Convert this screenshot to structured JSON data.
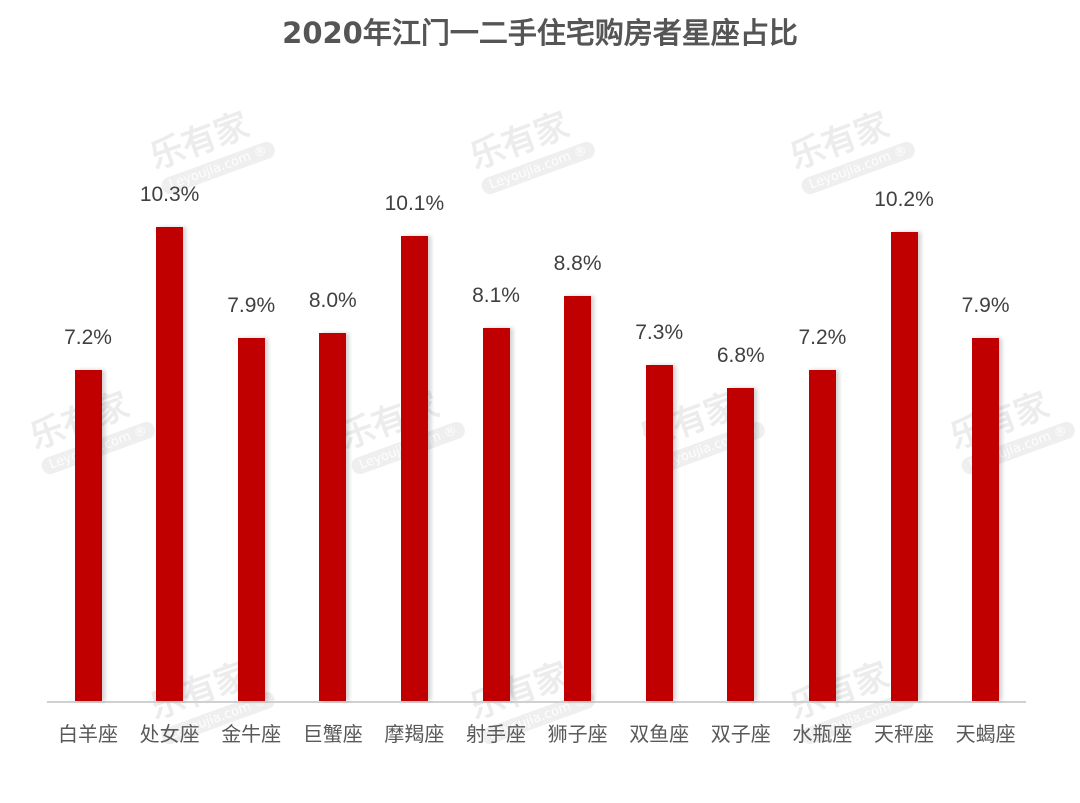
{
  "chart_data": {
    "type": "bar",
    "title": "2020年江门一二手住宅购房者星座占比",
    "categories": [
      "白羊座",
      "处女座",
      "金牛座",
      "巨蟹座",
      "摩羯座",
      "射手座",
      "狮子座",
      "双鱼座",
      "双子座",
      "水瓶座",
      "天秤座",
      "天蝎座"
    ],
    "values": [
      7.2,
      10.3,
      7.9,
      8.0,
      10.1,
      8.1,
      8.8,
      7.3,
      6.8,
      7.2,
      10.2,
      7.9
    ],
    "value_labels": [
      "7.2%",
      "10.3%",
      "7.9%",
      "8.0%",
      "10.1%",
      "8.1%",
      "8.8%",
      "7.3%",
      "6.8%",
      "7.2%",
      "10.2%",
      "7.9%"
    ],
    "xlabel": "",
    "ylabel": "",
    "ylim": [
      0,
      13.5
    ],
    "grid": false,
    "legend": null,
    "bar_color": "#c00000"
  },
  "watermark": {
    "text": "乐有家",
    "subtext": "Leyoujia.com ®"
  }
}
